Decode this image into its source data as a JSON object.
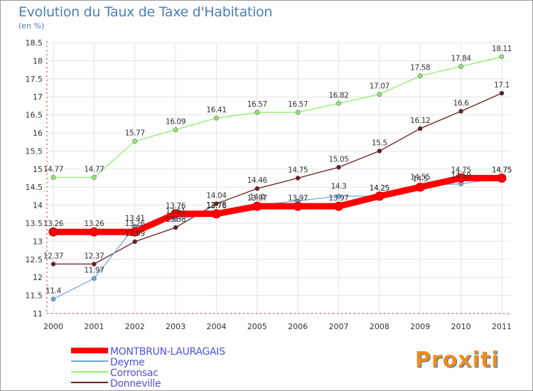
{
  "header": {
    "title": "Evolution du Taux de Taxe d'Habitation",
    "subtitle": "(en %)"
  },
  "logo": {
    "text": "Proxiti"
  },
  "chart_data": {
    "type": "line",
    "x": [
      2000,
      2001,
      2002,
      2003,
      2004,
      2005,
      2006,
      2007,
      2008,
      2009,
      2010,
      2011
    ],
    "ylim": [
      11,
      18.5
    ],
    "yticks": [
      11,
      11.5,
      12,
      12.5,
      13,
      13.5,
      14,
      14.5,
      15,
      15.5,
      16,
      16.5,
      17,
      17.5,
      18,
      18.5
    ],
    "legend_position": "bottom-left",
    "series": [
      {
        "name": "MONTBRUN-LAURAGAIS",
        "color": "#ff0000",
        "values": [
          13.26,
          13.26,
          13.26,
          13.76,
          13.76,
          13.97,
          13.97,
          13.97,
          14.25,
          14.5,
          14.75,
          14.75
        ]
      },
      {
        "name": "Deyme",
        "color": "#6fa8dc",
        "values": [
          11.4,
          11.97,
          13.41,
          13.61,
          13.78,
          14.0,
          14.12,
          14.25,
          14.25,
          14.55,
          14.59,
          14.75
        ]
      },
      {
        "name": "Corronsac",
        "color": "#90ee70",
        "values": [
          14.77,
          14.77,
          15.77,
          16.09,
          16.41,
          16.57,
          16.57,
          16.82,
          17.07,
          17.58,
          17.84,
          18.11
        ]
      },
      {
        "name": "Donneville",
        "color": "#6b1e1e",
        "values": [
          12.37,
          12.37,
          12.99,
          13.38,
          14.04,
          14.46,
          14.75,
          15.05,
          15.5,
          16.12,
          16.6,
          17.1
        ]
      }
    ],
    "point_labels": [
      {
        "x": 2000,
        "y": 14.77,
        "text": "14.77"
      },
      {
        "x": 2001,
        "y": 14.77,
        "text": "14.77"
      },
      {
        "x": 2002,
        "y": 15.77,
        "text": "15.77"
      },
      {
        "x": 2003,
        "y": 16.09,
        "text": "16.09"
      },
      {
        "x": 2004,
        "y": 16.41,
        "text": "16.41"
      },
      {
        "x": 2005,
        "y": 16.57,
        "text": "16.57"
      },
      {
        "x": 2006,
        "y": 16.57,
        "text": "16.57"
      },
      {
        "x": 2007,
        "y": 16.82,
        "text": "16.82"
      },
      {
        "x": 2008,
        "y": 17.07,
        "text": "17.07"
      },
      {
        "x": 2009,
        "y": 17.58,
        "text": "17.58"
      },
      {
        "x": 2010,
        "y": 17.84,
        "text": "17.84"
      },
      {
        "x": 2011,
        "y": 18.11,
        "text": "18.11"
      },
      {
        "x": 2000,
        "y": 13.26,
        "text": "13.26"
      },
      {
        "x": 2001,
        "y": 13.26,
        "text": "13.26"
      },
      {
        "x": 2002,
        "y": 13.41,
        "text": "13.41"
      },
      {
        "x": 2002,
        "y": 13.26,
        "text": "13.26"
      },
      {
        "x": 2002,
        "y": 12.99,
        "text": "12.99"
      },
      {
        "x": 2003,
        "y": 13.76,
        "text": "13.76"
      },
      {
        "x": 2003,
        "y": 13.61,
        "text": "13.61"
      },
      {
        "x": 2003,
        "y": 13.38,
        "text": "13.38"
      },
      {
        "x": 2004,
        "y": 14.04,
        "text": "14.04"
      },
      {
        "x": 2004,
        "y": 13.78,
        "text": "13.78"
      },
      {
        "x": 2004,
        "y": 13.76,
        "text": "13.76"
      },
      {
        "x": 2005,
        "y": 14.46,
        "text": "14.46"
      },
      {
        "x": 2005,
        "y": 14.0,
        "text": "14.0"
      },
      {
        "x": 2005,
        "y": 13.97,
        "text": "13.97"
      },
      {
        "x": 2006,
        "y": 14.75,
        "text": "14.75"
      },
      {
        "x": 2006,
        "y": 13.97,
        "text": "13.97"
      },
      {
        "x": 2007,
        "y": 15.05,
        "text": "15.05"
      },
      {
        "x": 2007,
        "y": 14.3,
        "text": "14.3"
      },
      {
        "x": 2007,
        "y": 13.97,
        "text": "13.97"
      },
      {
        "x": 2008,
        "y": 15.5,
        "text": "15.5"
      },
      {
        "x": 2008,
        "y": 14.25,
        "text": "14.25"
      },
      {
        "x": 2008,
        "y": 14.25,
        "text": "14.25"
      },
      {
        "x": 2009,
        "y": 16.12,
        "text": "16.12"
      },
      {
        "x": 2009,
        "y": 14.55,
        "text": "14.55"
      },
      {
        "x": 2009,
        "y": 14.5,
        "text": "14.5"
      },
      {
        "x": 2010,
        "y": 16.6,
        "text": "16.6"
      },
      {
        "x": 2010,
        "y": 14.75,
        "text": "14.75"
      },
      {
        "x": 2010,
        "y": 14.59,
        "text": "14.59"
      },
      {
        "x": 2011,
        "y": 17.1,
        "text": "17.1"
      },
      {
        "x": 2011,
        "y": 14.75,
        "text": "14.75"
      },
      {
        "x": 2011,
        "y": 14.75,
        "text": "14.75"
      },
      {
        "x": 2000,
        "y": 12.37,
        "text": "12.37"
      },
      {
        "x": 2001,
        "y": 12.37,
        "text": "12.37"
      },
      {
        "x": 2001,
        "y": 11.97,
        "text": "11.97"
      },
      {
        "x": 2000,
        "y": 11.4,
        "text": "11.4"
      }
    ]
  }
}
